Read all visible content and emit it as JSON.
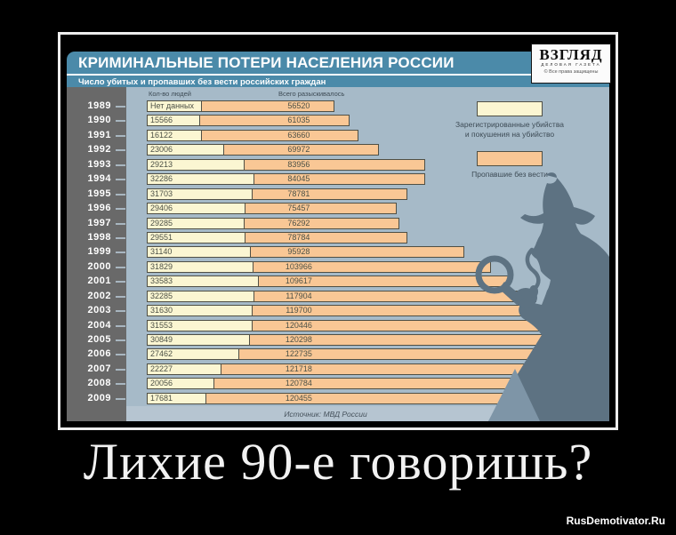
{
  "demotivator": {
    "caption": "Лихие 90-е говоришь?",
    "watermark": "RusDemotivator.Ru"
  },
  "chart": {
    "title": "КРИМИНАЛЬНЫЕ ПОТЕРИ НАСЕЛЕНИЯ РОССИИ",
    "subtitle": "Число убитых и пропавших без вести российских граждан",
    "logo": {
      "name": "ВЗГЛЯД",
      "tagline": "ДЕЛОВАЯ ГАЗЕТА",
      "rights": "© Все права защищены"
    },
    "column_headers": {
      "people": "Кол-во людей",
      "total": "Всего разыскивалось"
    },
    "no_data_label": "Нет данных",
    "source": "Источник: МВД России",
    "colors": {
      "header_teal": "#4b8aa9",
      "plot_background": "#a6bac8",
      "year_column": "#696969",
      "murders_bar": "#fbf6d2",
      "missing_bar": "#f9c795",
      "silhouette": "#5d7282"
    }
  },
  "chart_data": {
    "type": "bar",
    "orientation": "horizontal",
    "title": "КРИМИНАЛЬНЫЕ ПОТЕРИ НАСЕЛЕНИЯ РОССИИ",
    "subtitle": "Число убитых и пропавших без вести российских граждан",
    "categories": [
      "1989",
      "1990",
      "1991",
      "1992",
      "1993",
      "1994",
      "1995",
      "1996",
      "1997",
      "1998",
      "1999",
      "2000",
      "2001",
      "2002",
      "2003",
      "2004",
      "2005",
      "2006",
      "2007",
      "2008",
      "2009"
    ],
    "series": [
      {
        "name": "Зарегистрированные убийства и покушения на убийство",
        "legend_lines": [
          "Зарегистрированные убийства",
          "и покушения на убийство"
        ],
        "color": "#fbf6d2",
        "values": [
          null,
          15566,
          16122,
          23006,
          29213,
          32286,
          31703,
          29406,
          29285,
          29551,
          31140,
          31829,
          33583,
          32285,
          31630,
          31553,
          30849,
          27462,
          22227,
          20056,
          17681
        ]
      },
      {
        "name": "Пропавшие без вести",
        "legend_lines": [
          "Пропавшие без вести"
        ],
        "color": "#f9c795",
        "values": [
          56520,
          61035,
          63660,
          69972,
          83956,
          84045,
          78781,
          75457,
          76292,
          78784,
          95928,
          103966,
          109617,
          117904,
          119700,
          120446,
          120298,
          122735,
          121718,
          120784,
          120455
        ]
      }
    ],
    "xlim": [
      0,
      140000
    ],
    "grid": false,
    "legend_position": "upper right",
    "source": "Источник: МВД России"
  }
}
